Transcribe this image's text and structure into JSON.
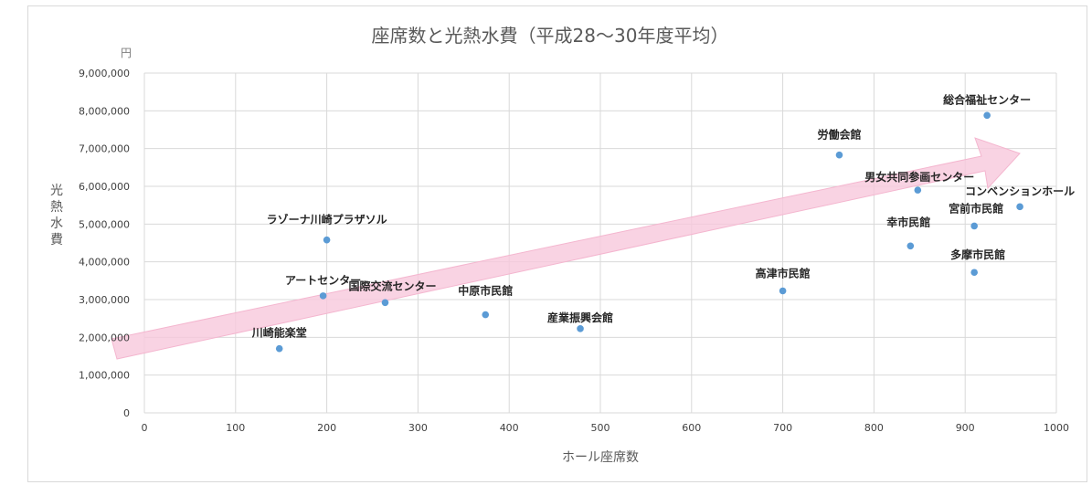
{
  "chart_data": {
    "type": "scatter",
    "title": "座席数と光熱水費（平成28〜30年度平均）",
    "xlabel": "ホール座席数",
    "ylabel": "光熱水費",
    "y_unit": "円",
    "xlim": [
      0,
      1000
    ],
    "ylim": [
      0,
      9000000
    ],
    "x_ticks": [
      "0",
      "100",
      "200",
      "300",
      "400",
      "500",
      "600",
      "700",
      "800",
      "900",
      "1000"
    ],
    "y_ticks": [
      "0",
      "1,000,000",
      "2,000,000",
      "3,000,000",
      "4,000,000",
      "5,000,000",
      "6,000,000",
      "7,000,000",
      "8,000,000",
      "9,000,000"
    ],
    "grid": true,
    "legend": "none",
    "marker_color": "#5b9bd5",
    "arrow_color": "#f8c8dc",
    "points": [
      {
        "label": "川崎能楽堂",
        "x": 148,
        "y": 1700000
      },
      {
        "label": "アートセンター",
        "x": 196,
        "y": 3100000
      },
      {
        "label": "ラゾーナ川崎プラザソル",
        "x": 200,
        "y": 4580000
      },
      {
        "label": "国際交流センター",
        "x": 264,
        "y": 2920000
      },
      {
        "label": "中原市民館",
        "x": 374,
        "y": 2600000
      },
      {
        "label": "産業振興会館",
        "x": 478,
        "y": 2230000
      },
      {
        "label": "高津市民館",
        "x": 700,
        "y": 3230000
      },
      {
        "label": "労働会館",
        "x": 762,
        "y": 6830000
      },
      {
        "label": "幸市民館",
        "x": 840,
        "y": 4420000
      },
      {
        "label": "男女共同参画センター",
        "x": 848,
        "y": 5900000
      },
      {
        "label": "宮前市民館",
        "x": 910,
        "y": 4950000
      },
      {
        "label": "多摩市民館",
        "x": 910,
        "y": 3720000
      },
      {
        "label": "総合福祉センター",
        "x": 924,
        "y": 7880000
      },
      {
        "label": "コンベンションホール",
        "x": 960,
        "y": 5460000
      }
    ]
  }
}
